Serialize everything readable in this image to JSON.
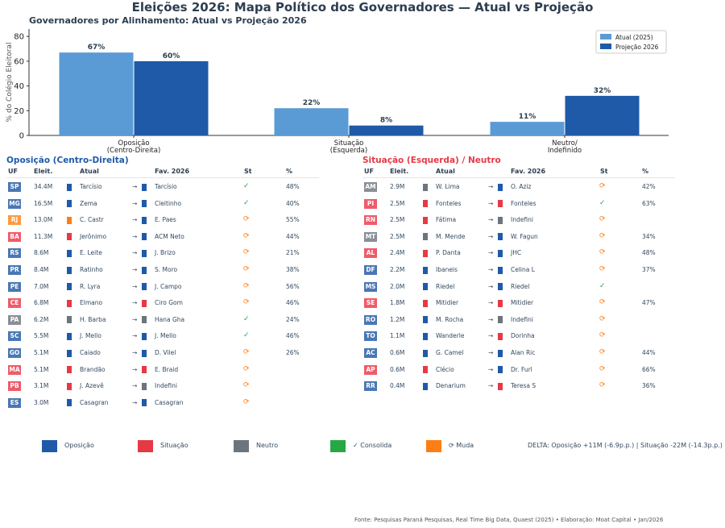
{
  "title": "Eleições 2026: Mapa Político dos Governadores — Atual vs Projeção",
  "colors": {
    "oposicao": "#1f5aa8",
    "atual_bar": "#5b9bd5",
    "situacao": "#e63946",
    "neutro": "#6c757d",
    "consolida": "#28a745",
    "muda": "#fd7e14"
  },
  "chart_data": {
    "type": "bar",
    "title": "Governadores por Alinhamento: Atual vs Projeção 2026",
    "ylabel": "% do Colégio Eleitoral",
    "xlabel": "",
    "ylim": [
      0,
      86
    ],
    "yticks": [
      0,
      20,
      40,
      60,
      80
    ],
    "categories": [
      "Oposição\n(Centro-Direita)",
      "Situação\n(Esquerda)",
      "Neutro/\nIndefinido"
    ],
    "series": [
      {
        "name": "Atual (2025)",
        "values": [
          67,
          22,
          11
        ],
        "labels": [
          "67%",
          "22%",
          "11%"
        ]
      },
      {
        "name": "Projeção 2026",
        "values": [
          60,
          8,
          32
        ],
        "labels": [
          "60%",
          "8%",
          "32%"
        ]
      }
    ],
    "legend": "top-right",
    "grid": false
  },
  "tables": {
    "headers": [
      "UF",
      "Eleit.",
      "Atual",
      "Fav. 2026",
      "St",
      "%"
    ],
    "left": {
      "title": "Oposição (Centro-Direita)",
      "rows": [
        [
          "SP",
          "34.4M",
          "op",
          "Tarcísio",
          "op",
          "Tarcísio",
          "ok",
          "48%"
        ],
        [
          "MG",
          "16.5M",
          "op",
          "Zema",
          "op",
          "Cleitinho",
          "ok",
          "40%"
        ],
        [
          "RJ",
          "13.0M",
          "mu",
          "C. Castr",
          "op",
          "E. Paes",
          "chg",
          "55%"
        ],
        [
          "BA",
          "11.3M",
          "si",
          "Jerônimo",
          "op",
          "ACM Neto",
          "chg",
          "44%"
        ],
        [
          "RS",
          "8.6M",
          "op",
          "E. Leite",
          "op",
          "J. Brizo",
          "chg",
          "21%"
        ],
        [
          "PR",
          "8.4M",
          "op",
          "Ratinho",
          "op",
          "S. Moro",
          "chg",
          "38%"
        ],
        [
          "PE",
          "7.0M",
          "op",
          "R. Lyra",
          "op",
          "J. Campo",
          "chg",
          "56%"
        ],
        [
          "CE",
          "6.8M",
          "si",
          "Elmano",
          "si",
          "Ciro Gom",
          "chg",
          "46%"
        ],
        [
          "PA",
          "6.2M",
          "ne",
          "H. Barba",
          "ne",
          "Hana Gha",
          "ok",
          "24%"
        ],
        [
          "SC",
          "5.5M",
          "op",
          "J. Mello",
          "op",
          "J. Mello",
          "ok",
          "46%"
        ],
        [
          "GO",
          "5.1M",
          "op",
          "Caiado",
          "op",
          "D. Vilel",
          "chg",
          "26%"
        ],
        [
          "MA",
          "5.1M",
          "si",
          "Brandão",
          "si",
          "E. Braid",
          "chg",
          ""
        ],
        [
          "PB",
          "3.1M",
          "si",
          "J. Azevê",
          "ne",
          "Indefini",
          "chg",
          ""
        ],
        [
          "ES",
          "3.0M",
          "op",
          "Casagran",
          "op",
          "Casagran",
          "chg",
          ""
        ]
      ]
    },
    "right": {
      "title": "Situação (Esquerda) / Neutro",
      "rows": [
        [
          "AM",
          "2.9M",
          "ne",
          "W. Lima",
          "op",
          "O. Aziz",
          "chg",
          "42%"
        ],
        [
          "PI",
          "2.5M",
          "si",
          "Fonteles",
          "si",
          "Fonteles",
          "ok",
          "63%"
        ],
        [
          "RN",
          "2.5M",
          "si",
          "Fátima",
          "ne",
          "Indefini",
          "chg",
          ""
        ],
        [
          "MT",
          "2.5M",
          "ne",
          "M. Mende",
          "op",
          "W. Fagun",
          "chg",
          "34%"
        ],
        [
          "AL",
          "2.4M",
          "si",
          "P. Danta",
          "op",
          "JHC",
          "chg",
          "48%"
        ],
        [
          "DF",
          "2.2M",
          "op",
          "Ibaneis",
          "op",
          "Celina L",
          "chg",
          "37%"
        ],
        [
          "MS",
          "2.0M",
          "op",
          "Riedel",
          "op",
          "Riedel",
          "ok",
          ""
        ],
        [
          "SE",
          "1.8M",
          "si",
          "Mitidier",
          "si",
          "Mitidier",
          "chg",
          "47%"
        ],
        [
          "RO",
          "1.2M",
          "op",
          "M. Rocha",
          "ne",
          "Indefini",
          "chg",
          ""
        ],
        [
          "TO",
          "1.1M",
          "op",
          "Wanderle",
          "si",
          "Dorinha",
          "chg",
          ""
        ],
        [
          "AC",
          "0.6M",
          "op",
          "G. Camel",
          "op",
          "Alan Ric",
          "chg",
          "44%"
        ],
        [
          "AP",
          "0.6M",
          "si",
          "Clécio",
          "op",
          "Dr. Furl",
          "chg",
          "66%"
        ],
        [
          "RR",
          "0.4M",
          "op",
          "Denarium",
          "si",
          "Teresa S",
          "chg",
          "36%"
        ]
      ]
    },
    "arrow": "→",
    "status_icons": {
      "ok": "✓",
      "chg": "⟳"
    }
  },
  "legend": {
    "items": [
      {
        "label": "Oposição",
        "color": "#1f5aa8"
      },
      {
        "label": "Situação",
        "color": "#e63946"
      },
      {
        "label": "Neutro",
        "color": "#6c757d"
      },
      {
        "label": "✓ Consolida",
        "color": "#28a745"
      },
      {
        "label": "⟳ Muda",
        "color": "#fd7e14"
      }
    ],
    "delta": "DELTA: Oposição +11M (-6.9p.p.) | Situação -22M (-14.3p.p.)"
  },
  "footer": "Fonte: Pesquisas Paraná Pesquisas, Real Time Big Data, Quaest (2025)  •  Elaboração: Moat Capital  •  Jan/2026"
}
